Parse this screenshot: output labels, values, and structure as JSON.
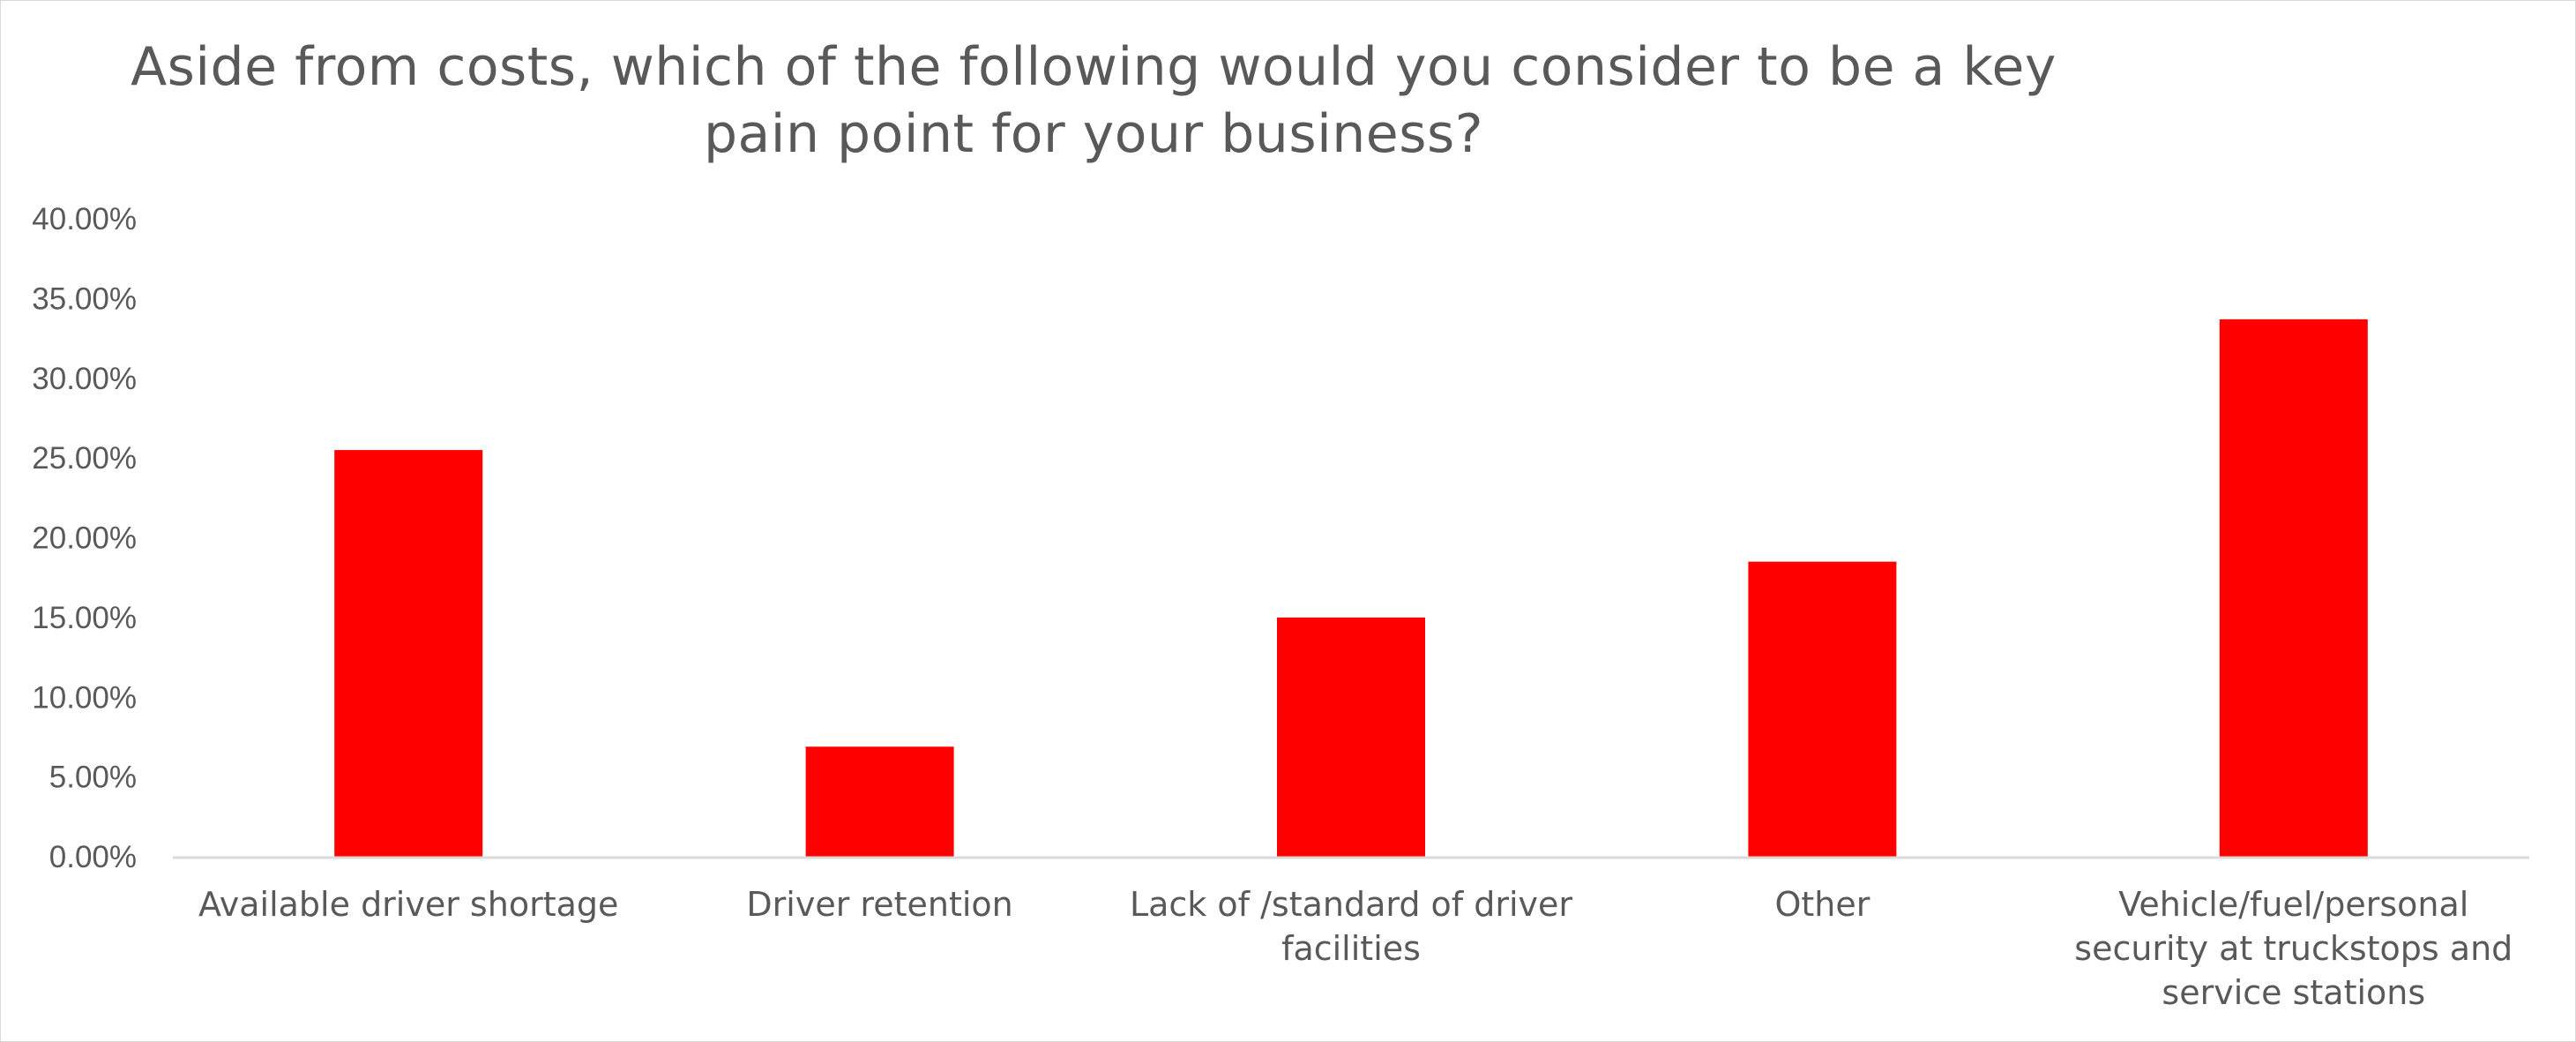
{
  "chart_data": {
    "type": "bar",
    "title": "Aside from costs, which of the following would you consider to be a key\npain point for your business?",
    "xlabel": "",
    "ylabel": "",
    "categories": [
      "Available driver shortage",
      "Driver retention",
      "Lack of /standard of driver facilities",
      "Other",
      "Vehicle/fuel/personal security at truckstops and service stations"
    ],
    "category_lines": [
      [
        "Available driver shortage"
      ],
      [
        "Driver retention"
      ],
      [
        "Lack of /standard of driver",
        "facilities"
      ],
      [
        "Other"
      ],
      [
        "Vehicle/fuel/personal",
        "security at truckstops and",
        "service stations"
      ]
    ],
    "values": [
      25.5,
      6.9,
      15.0,
      18.5,
      33.7
    ],
    "ylim": [
      0,
      40
    ],
    "yticks": [
      0,
      5,
      10,
      15,
      20,
      25,
      30,
      35,
      40
    ],
    "ytick_labels": [
      "0.00%",
      "5.00%",
      "10.00%",
      "15.00%",
      "20.00%",
      "25.00%",
      "30.00%",
      "35.00%",
      "40.00%"
    ],
    "grid": false,
    "legend": "none",
    "bar_color": "#ff0000",
    "axis_color": "#d9d9d9",
    "text_color": "#595959"
  }
}
